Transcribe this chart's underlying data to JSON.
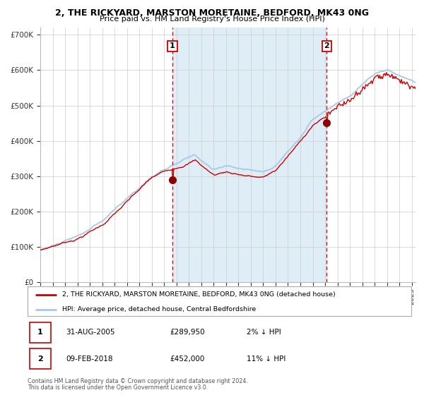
{
  "title": "2, THE RICKYARD, MARSTON MORETAINE, BEDFORD, MK43 0NG",
  "subtitle": "Price paid vs. HM Land Registry's House Price Index (HPI)",
  "legend_line1": "2, THE RICKYARD, MARSTON MORETAINE, BEDFORD, MK43 0NG (detached house)",
  "legend_line2": "HPI: Average price, detached house, Central Bedfordshire",
  "annotation1_label": "1",
  "annotation1_date": "31-AUG-2005",
  "annotation1_price": "£289,950",
  "annotation1_hpi": "2% ↓ HPI",
  "annotation2_label": "2",
  "annotation2_date": "09-FEB-2018",
  "annotation2_price": "£452,000",
  "annotation2_hpi": "11% ↓ HPI",
  "footnote1": "Contains HM Land Registry data © Crown copyright and database right 2024.",
  "footnote2": "This data is licensed under the Open Government Licence v3.0.",
  "ylim": [
    0,
    720000
  ],
  "yticks": [
    0,
    100000,
    200000,
    300000,
    400000,
    500000,
    600000,
    700000
  ],
  "ytick_labels": [
    "£0",
    "£100K",
    "£200K",
    "£300K",
    "£400K",
    "£500K",
    "£600K",
    "£700K"
  ],
  "hpi_color": "#a8c8e8",
  "price_color": "#cc0000",
  "dot_color": "#8b0000",
  "vline_color": "#cc0000",
  "shade_color": "#daeaf5",
  "grid_color": "#cccccc",
  "sale1_x": 2005.67,
  "sale1_y": 289950,
  "sale2_x": 2018.12,
  "sale2_y": 452000,
  "xmin": 1995,
  "xmax": 2025.3
}
